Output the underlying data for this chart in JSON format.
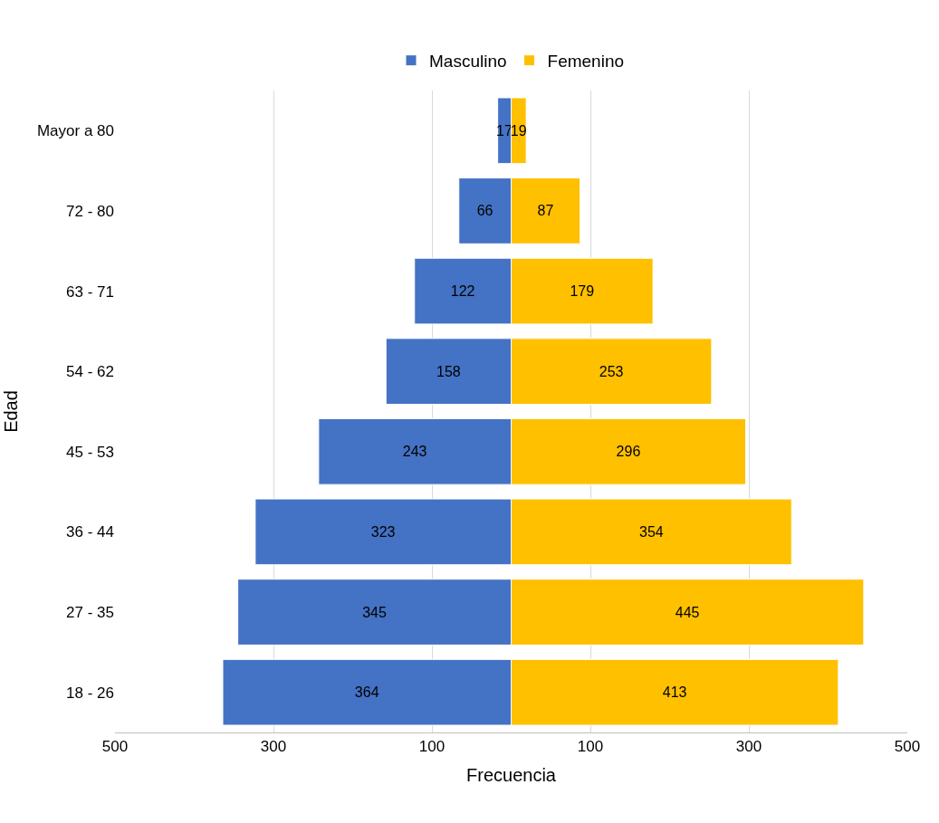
{
  "chart_data": {
    "type": "bar",
    "orientation": "horizontal",
    "xlabel": "Frecuencia",
    "ylabel": "Edad",
    "categories": [
      "Mayor a 80",
      "72 - 80",
      "63 - 71",
      "54 - 62",
      "45 - 53",
      "36 - 44",
      "27 - 35",
      "18 - 26"
    ],
    "series": [
      {
        "name": "Masculino",
        "color": "#4472c4",
        "values": [
          17,
          66,
          122,
          158,
          243,
          323,
          345,
          364
        ],
        "base": [
          -17,
          -66,
          -122,
          -158,
          -243,
          -323,
          -345,
          -364
        ],
        "value_labels": [
          "17",
          "66",
          "122",
          "158",
          "243",
          "323",
          "345",
          "364"
        ]
      },
      {
        "name": "Femenino",
        "color": "#ffc000",
        "values": [
          19,
          87,
          179,
          253,
          296,
          354,
          445,
          413
        ],
        "value_labels": [
          "19",
          "87",
          "179",
          "253",
          "296",
          "354",
          "445",
          "413"
        ]
      }
    ],
    "xlim": [
      -500,
      500
    ],
    "xticks": [
      {
        "value": -500,
        "label": "500"
      },
      {
        "value": -300,
        "label": "300"
      },
      {
        "value": -100,
        "label": "100"
      },
      100,
      300,
      500
    ],
    "grid": "x",
    "legend": "top"
  }
}
